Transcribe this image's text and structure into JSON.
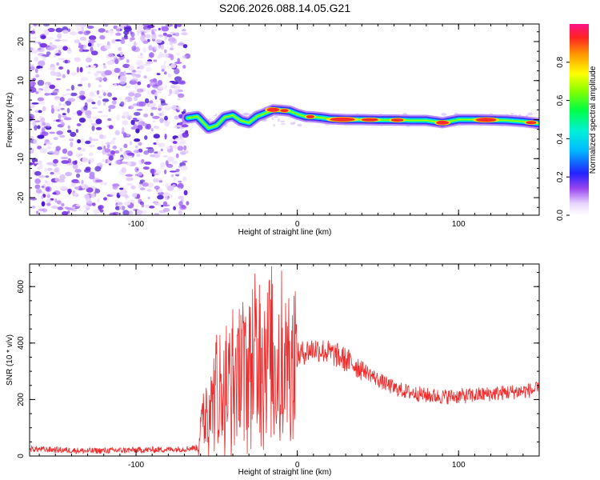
{
  "title": "S206.2026.088.14.05.G21",
  "chart_data": [
    {
      "type": "heatmap",
      "xlabel": "Height of straight line (km)",
      "ylabel": "Frequency (Hz)",
      "xlim": [
        -166,
        150
      ],
      "ylim": [
        -24.5,
        24.5
      ],
      "xticks": [
        -100,
        0,
        100
      ],
      "yticks": [
        -20,
        -10,
        0,
        10,
        20
      ],
      "colorbar": {
        "label": "Normalized spectral amplitude",
        "range": [
          0,
          1
        ],
        "ticks": [
          0.0,
          0.2,
          0.4,
          0.6,
          0.8
        ],
        "ticklabels": [
          "0.0",
          "0.2",
          "0.4",
          "0.6",
          "0.8"
        ]
      },
      "noise_region_x": [
        -166,
        -68
      ],
      "ridge": {
        "x": [
          -68,
          -62,
          -55,
          -50,
          -45,
          -40,
          -35,
          -30,
          -25,
          -20,
          -15,
          -10,
          -5,
          0,
          5,
          10,
          15,
          20,
          30,
          40,
          50,
          60,
          70,
          80,
          90,
          95,
          100,
          110,
          120,
          130,
          140,
          150
        ],
        "freq": [
          0.4,
          0.8,
          -2.2,
          -1.5,
          0.6,
          1.1,
          -0.3,
          -0.8,
          0.8,
          1.6,
          2.5,
          2.4,
          2.2,
          1.4,
          0.8,
          0.7,
          0.5,
          0.2,
          0.0,
          0.0,
          -0.1,
          -0.1,
          -0.2,
          -0.2,
          -0.8,
          -0.4,
          0.0,
          0.0,
          -0.1,
          -0.2,
          -0.5,
          -1.0
        ]
      }
    },
    {
      "type": "line",
      "xlabel": "Height of straight line (km)",
      "ylabel": "SNR (10 * v/v)",
      "xlim": [
        -166,
        150
      ],
      "ylim": [
        0,
        680
      ],
      "xticks": [
        -100,
        0,
        100
      ],
      "yticks": [
        0,
        200,
        400,
        600
      ],
      "color": "#ee2b2b",
      "series": [
        {
          "x": [
            -166,
            -150,
            -130,
            -110,
            -90,
            -70,
            -62,
            -58,
            -52,
            -46,
            -40,
            -34,
            -28,
            -22,
            -18,
            -14,
            -10,
            -5,
            0,
            5,
            10,
            15,
            20,
            25,
            30,
            40,
            50,
            60,
            70,
            80,
            90,
            100,
            110,
            120,
            130,
            140,
            150
          ],
          "y": [
            25,
            22,
            18,
            20,
            22,
            25,
            30,
            150,
            210,
            230,
            260,
            300,
            330,
            360,
            380,
            310,
            320,
            330,
            355,
            370,
            380,
            375,
            365,
            355,
            340,
            310,
            270,
            240,
            225,
            215,
            210,
            212,
            215,
            220,
            225,
            230,
            235
          ]
        }
      ],
      "peaks": [
        {
          "x": -16,
          "y": 672
        },
        {
          "x": -23,
          "y": 540
        },
        {
          "x": -35,
          "y": 500
        },
        {
          "x": -50,
          "y": 430
        },
        {
          "x": -6,
          "y": 460
        }
      ]
    }
  ]
}
